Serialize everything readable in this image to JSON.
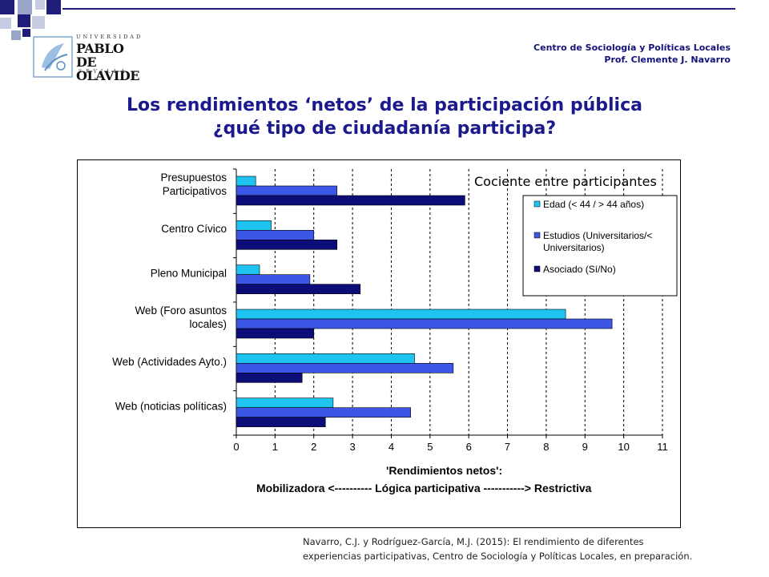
{
  "header": {
    "org": "Centro de Sociología y Políticas Locales",
    "author": "Prof. Clemente J. Navarro"
  },
  "logo": {
    "universidad": "UNIVERSIDAD",
    "line1": "PABLO DE",
    "line2": "OLAVIDE",
    "city": "SEVILLA"
  },
  "title": {
    "line1": "Los rendimientos ‘netos’ de la participación pública",
    "line2": "¿qué tipo de ciudadanía participa?"
  },
  "colors": {
    "title": "#1a1a8c",
    "edad": "#1ec3f0",
    "estudios": "#3c56e6",
    "asociado": "#0d0d7a"
  },
  "chart_data": {
    "type": "bar",
    "orientation": "horizontal",
    "title": "Cociente entre participantes",
    "xlabel": "'Rendimientos netos':",
    "xlabel2": "Mobilizadora <---------- Lógica participativa -----------> Restrictiva",
    "xlim": [
      0,
      11
    ],
    "xticks": [
      "0",
      "1",
      "2",
      "3",
      "4",
      "5",
      "6",
      "7",
      "8",
      "9",
      "10",
      "11"
    ],
    "grid": "vertical-dashed",
    "legend_position": "top-right",
    "categories": [
      [
        "Presupuestos",
        "Participativos"
      ],
      [
        "Centro Cívico"
      ],
      [
        "Pleno Municipal"
      ],
      [
        "Web (Foro asuntos",
        "locales)"
      ],
      [
        "Web (Actividades Ayto.)"
      ],
      [
        "Web (noticias políticas)"
      ]
    ],
    "series": [
      {
        "name": "Edad (< 44 / > 44 años)",
        "legend_lines": [
          "Edad (< 44 / > 44 años)"
        ],
        "color_key": "edad",
        "values": [
          0.5,
          0.9,
          0.6,
          8.5,
          4.6,
          2.5
        ]
      },
      {
        "name": "Estudios (Universitarios/< Universitarios)",
        "legend_lines": [
          "Estudios (Universitarios/<",
          "Universitarios)"
        ],
        "color_key": "estudios",
        "values": [
          2.6,
          2.0,
          1.9,
          9.7,
          5.6,
          4.5
        ]
      },
      {
        "name": "Asociado (Sí/No)",
        "legend_lines": [
          "Asociado (Sí/No)"
        ],
        "color_key": "asociado",
        "values": [
          5.9,
          2.6,
          3.2,
          2.0,
          1.7,
          2.3
        ]
      }
    ]
  },
  "footer": {
    "line1": "Navarro, C.J. y Rodríguez-García, M.J. (2015): El rendimiento de diferentes",
    "line2": "experiencias participativas, Centro de Sociología y Políticas Locales, en preparación."
  }
}
